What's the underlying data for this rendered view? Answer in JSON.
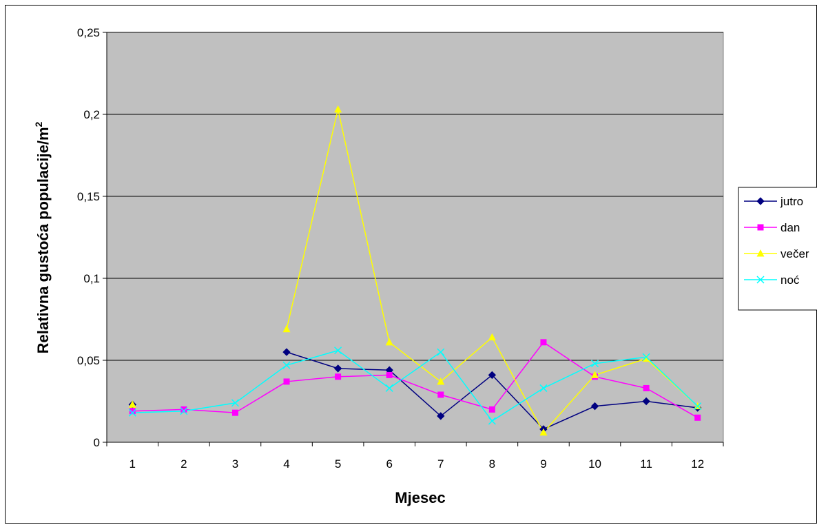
{
  "chart_data": {
    "type": "line",
    "title": "",
    "xlabel": "Mjesec",
    "ylabel": "Relativna gustoća populacije/m",
    "ylabel_superscript": "2",
    "categories": [
      "1",
      "2",
      "3",
      "4",
      "5",
      "6",
      "7",
      "8",
      "9",
      "10",
      "11",
      "12"
    ],
    "ylim": [
      0,
      0.25
    ],
    "yticks": [
      {
        "value": 0,
        "label": "0"
      },
      {
        "value": 0.05,
        "label": "0,05"
      },
      {
        "value": 0.1,
        "label": "0,1"
      },
      {
        "value": 0.15,
        "label": "0,15"
      },
      {
        "value": 0.2,
        "label": "0,2"
      },
      {
        "value": 0.25,
        "label": "0,25"
      }
    ],
    "grid": "horizontal",
    "plot_background": "#c0c0c0",
    "legend_position": "right",
    "series": [
      {
        "name": "jutro",
        "color": "#000080",
        "marker": "diamond",
        "values": [
          0.023,
          null,
          null,
          0.055,
          0.045,
          0.044,
          0.016,
          0.041,
          0.008,
          0.022,
          0.025,
          0.021
        ]
      },
      {
        "name": "dan",
        "color": "#ff00ff",
        "marker": "square",
        "values": [
          0.019,
          0.02,
          0.018,
          0.037,
          0.04,
          0.041,
          0.029,
          0.02,
          0.061,
          0.04,
          0.033,
          0.015
        ]
      },
      {
        "name": "večer",
        "color": "#ffff00",
        "marker": "triangle",
        "values": [
          0.023,
          null,
          null,
          0.069,
          0.203,
          0.061,
          0.037,
          0.064,
          0.006,
          0.041,
          0.051,
          0.022
        ]
      },
      {
        "name": "noć",
        "color": "#00ffff",
        "marker": "x",
        "values": [
          0.018,
          0.019,
          0.024,
          0.047,
          0.056,
          0.033,
          0.055,
          0.013,
          0.033,
          0.048,
          0.052,
          0.022
        ]
      }
    ]
  }
}
